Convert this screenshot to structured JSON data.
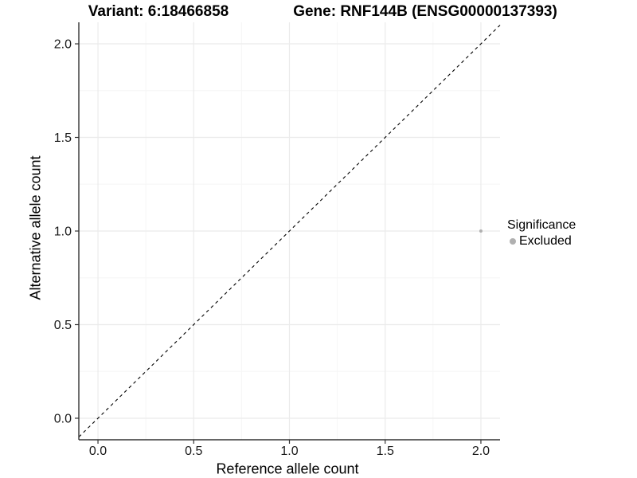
{
  "chart_data": {
    "type": "scatter",
    "titles": {
      "variant": "Variant: 6:18466858",
      "gene": "Gene: RNF144B (ENSG00000137393)"
    },
    "xlabel": "Reference allele count",
    "ylabel": "Alternative allele count",
    "xlim": [
      -0.1,
      2.1
    ],
    "ylim": [
      -0.115,
      2.115
    ],
    "x_ticks": [
      0.0,
      0.5,
      1.0,
      1.5,
      2.0
    ],
    "x_tick_labels": [
      "0.0",
      "0.5",
      "1.0",
      "1.5",
      "2.0"
    ],
    "y_ticks": [
      0.0,
      0.5,
      1.0,
      1.5,
      2.0
    ],
    "y_tick_labels": [
      "0.0",
      "0.5",
      "1.0",
      "1.5",
      "2.0"
    ],
    "x_minor_ticks": [
      0.25,
      0.75,
      1.25,
      1.75
    ],
    "y_minor_ticks": [
      0.25,
      0.75,
      1.25,
      1.75
    ],
    "grid": true,
    "series": [
      {
        "name": "Excluded",
        "color": "#b0b0b0",
        "points": [
          {
            "x": 2.0,
            "y": 1.0
          }
        ]
      }
    ],
    "reference_line": {
      "type": "abline",
      "slope": 1,
      "intercept": 0,
      "style": "dashed",
      "color": "#000000"
    },
    "legend": {
      "title": "Significance",
      "position": "right",
      "items": [
        {
          "label": "Excluded",
          "color": "#b0b0b0"
        }
      ]
    },
    "colors": {
      "grid_major": "#ebebeb",
      "grid_minor": "#f6f6f6",
      "axis_line": "#333333",
      "tick_text": "#1a1a1a",
      "background": "#ffffff"
    }
  }
}
